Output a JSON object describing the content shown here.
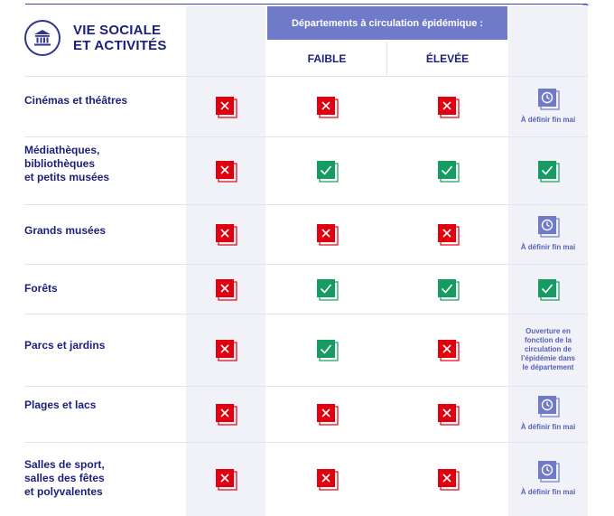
{
  "section_title": [
    "VIE SOCIALE",
    "ET ACTIVITÉS"
  ],
  "header": {
    "banner": "Départements à circulation épidémique :",
    "faible": "FAIBLE",
    "elevee": "ÉLEVÉE"
  },
  "colors": {
    "no": "#e1000f",
    "yes": "#169b62",
    "pending": "#6f7bc9",
    "text": "#1a1f7a"
  },
  "rows": [
    {
      "label": "Cinémas et théâtres",
      "c1": "no",
      "faible": "no",
      "elevee": "no",
      "c4": "pending",
      "note": "À définir fin mai"
    },
    {
      "label": "Médiathèques,\nbibliothèques\net petits musées",
      "c1": "no",
      "faible": "yes",
      "elevee": "yes",
      "c4": "yes",
      "note": ""
    },
    {
      "label": "Grands musées",
      "c1": "no",
      "faible": "no",
      "elevee": "no",
      "c4": "pending",
      "note": "À définir fin mai"
    },
    {
      "label": "Forêts",
      "c1": "no",
      "faible": "yes",
      "elevee": "yes",
      "c4": "yes",
      "note": ""
    },
    {
      "label": "Parcs et jardins",
      "c1": "no",
      "faible": "yes",
      "elevee": "no",
      "c4": "text",
      "note": "Ouverture en\nfonction de la\ncirculation de\nl’épidémie dans\nle département"
    },
    {
      "label": "Plages et lacs",
      "c1": "no",
      "faible": "no",
      "elevee": "no",
      "c4": "pending",
      "note": "À définir fin mai"
    },
    {
      "label": "Salles de sport,\nsalles des fêtes\net polyvalentes",
      "c1": "no",
      "faible": "no",
      "elevee": "no",
      "c4": "pending",
      "note": "À définir fin mai"
    }
  ]
}
